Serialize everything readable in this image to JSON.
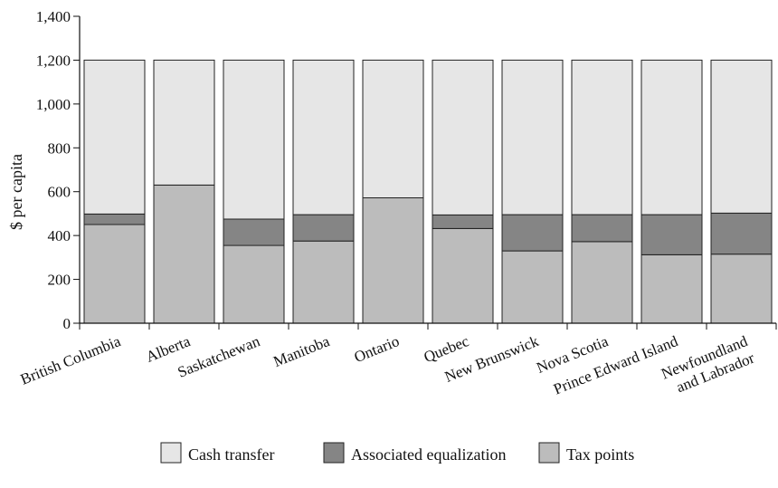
{
  "chart_data": {
    "type": "bar",
    "stacked": true,
    "title": "",
    "xlabel": "",
    "ylabel": "$ per capita",
    "ylim": [
      0,
      1400
    ],
    "yticks": [
      0,
      200,
      400,
      600,
      800,
      1000,
      1200,
      1400
    ],
    "ytick_labels": [
      "0",
      "200",
      "400",
      "600",
      "800",
      "1,000",
      "1,200",
      "1,400"
    ],
    "grid": false,
    "legend_position": "bottom",
    "categories": [
      "British Columbia",
      "Alberta",
      "Saskatchewan",
      "Manitoba",
      "Ontario",
      "Quebec",
      "New Brunswick",
      "Nova Scotia",
      "Prince Edward Island",
      "Newfoundland and Labrador"
    ],
    "category_lines": [
      [
        "British Columbia"
      ],
      [
        "Alberta"
      ],
      [
        "Saskatchewan"
      ],
      [
        "Manitoba"
      ],
      [
        "Ontario"
      ],
      [
        "Quebec"
      ],
      [
        "New Brunswick"
      ],
      [
        "Nova Scotia"
      ],
      [
        "Prince Edward Island"
      ],
      [
        "Newfoundland",
        "and Labrador"
      ]
    ],
    "series": [
      {
        "name": "Tax points",
        "color": "#bcbcbc",
        "values": [
          450,
          630,
          355,
          375,
          572,
          432,
          330,
          372,
          312,
          315
        ]
      },
      {
        "name": "Associated equalization",
        "color": "#858585",
        "values": [
          48,
          0,
          120,
          120,
          0,
          62,
          165,
          123,
          183,
          187
        ]
      },
      {
        "name": "Cash transfer",
        "color": "#e6e6e6",
        "values": [
          702,
          570,
          725,
          705,
          628,
          706,
          705,
          705,
          705,
          698
        ]
      }
    ],
    "legend_order": [
      "Cash transfer",
      "Associated equalization",
      "Tax points"
    ]
  }
}
